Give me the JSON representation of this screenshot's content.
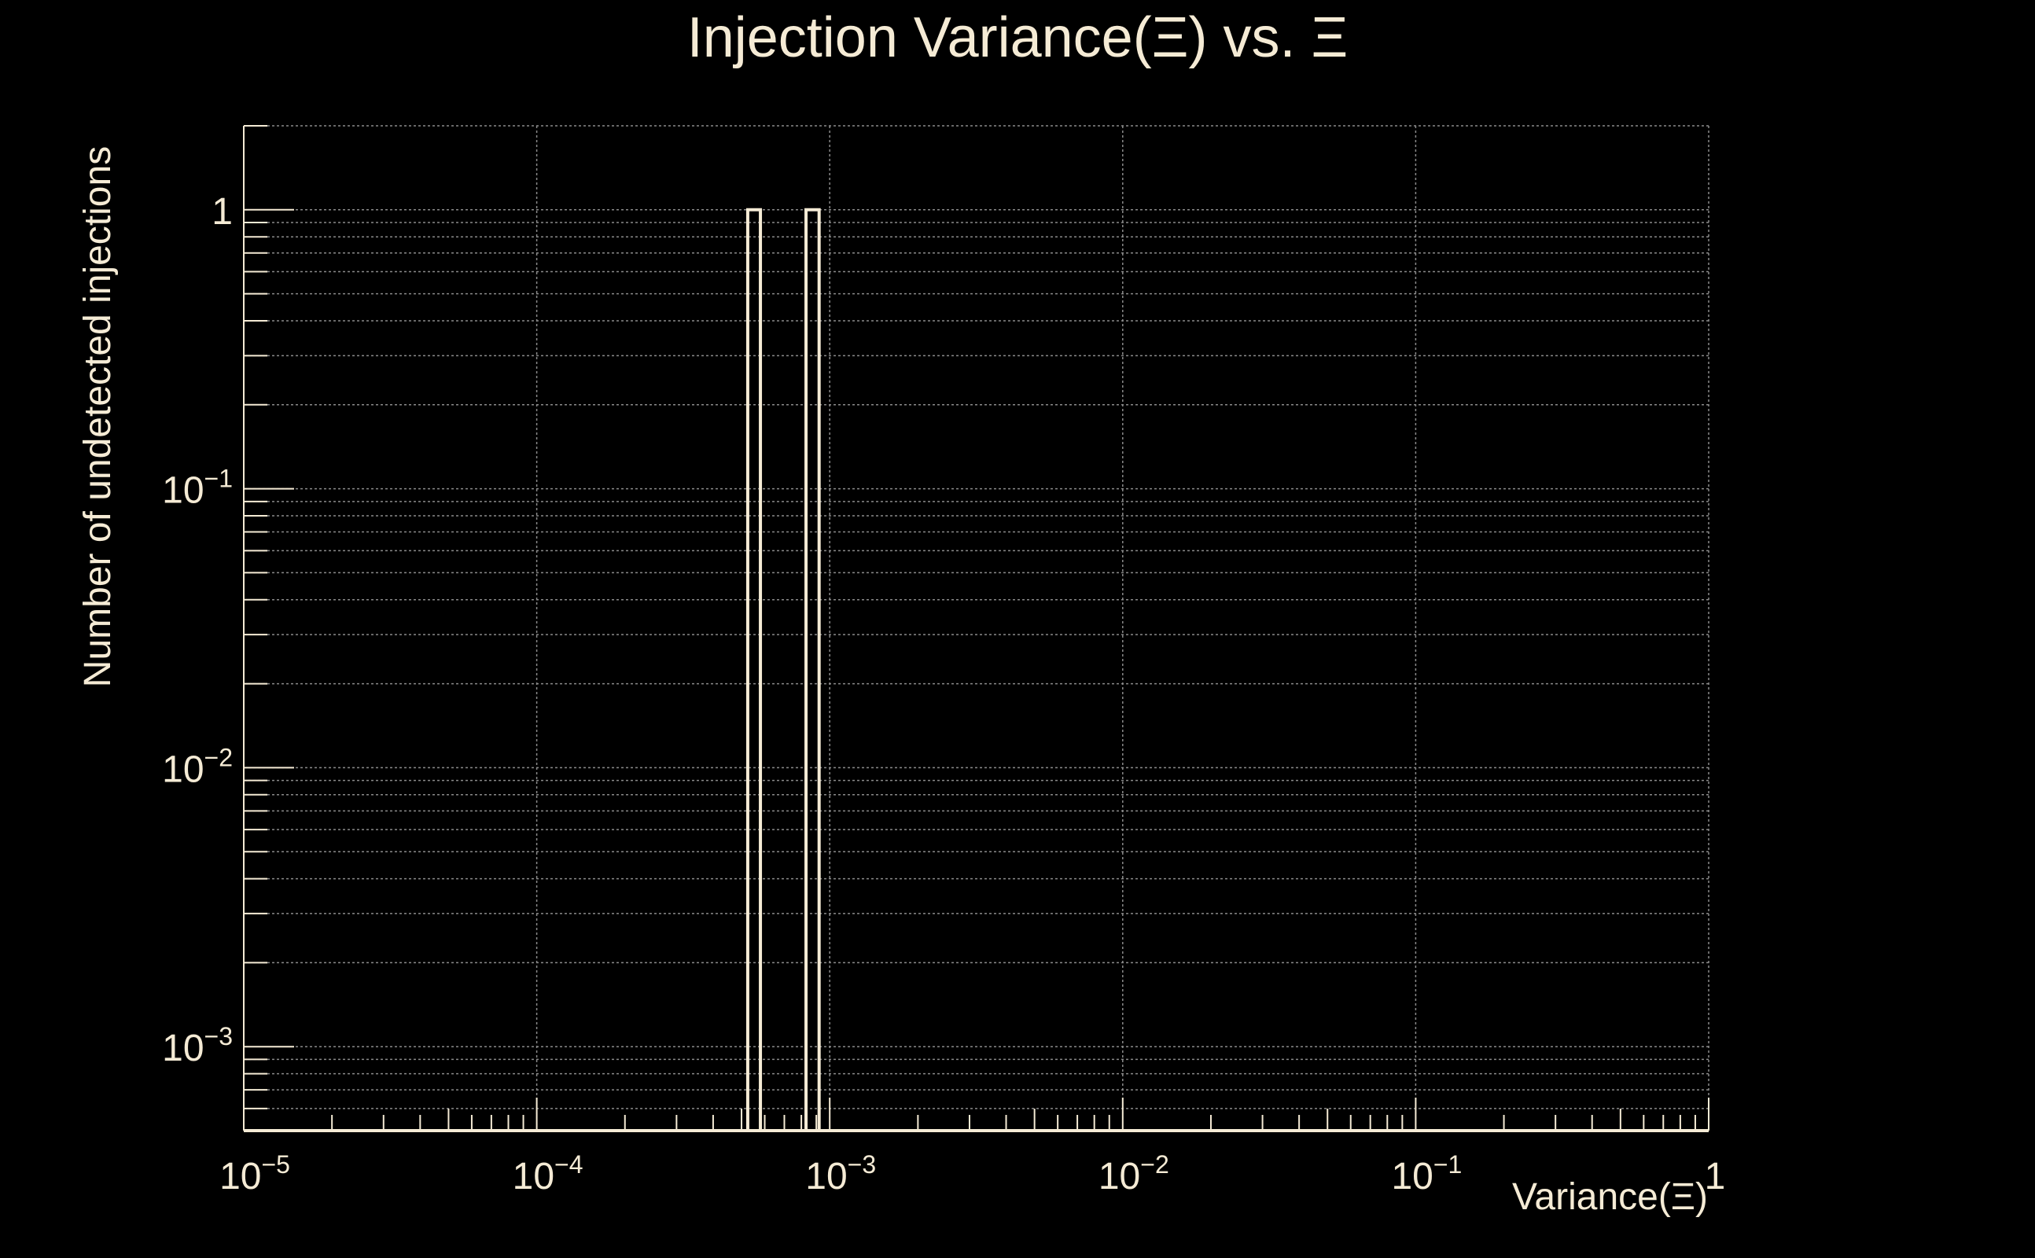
{
  "chart_data": {
    "type": "bar",
    "title": "Injection Variance(Ξ) vs. Ξ",
    "xlabel": "Variance(Ξ)",
    "ylabel": "Number of undetected injections",
    "x_scale": "log",
    "y_scale": "log",
    "xlim": [
      1e-05,
      1
    ],
    "ylim": [
      0.0005,
      2
    ],
    "grid": true,
    "x_ticks": [
      {
        "value": 1e-05,
        "base": "10",
        "exp": "−5"
      },
      {
        "value": 0.0001,
        "base": "10",
        "exp": "−4"
      },
      {
        "value": 0.001,
        "base": "10",
        "exp": "−3"
      },
      {
        "value": 0.01,
        "base": "10",
        "exp": "−2"
      },
      {
        "value": 0.1,
        "base": "10",
        "exp": "−1"
      },
      {
        "value": 1,
        "base": "1",
        "exp": ""
      }
    ],
    "y_ticks": [
      {
        "value": 0.001,
        "base": "10",
        "exp": "−3"
      },
      {
        "value": 0.01,
        "base": "10",
        "exp": "−2"
      },
      {
        "value": 0.1,
        "base": "10",
        "exp": "−1"
      },
      {
        "value": 1,
        "base": "1",
        "exp": ""
      }
    ],
    "bins": [
      {
        "x_low": 0.000525,
        "x_high": 0.00058,
        "value": 1
      },
      {
        "x_low": 0.00083,
        "x_high": 0.00092,
        "value": 1
      }
    ]
  },
  "colors": {
    "background": "#000000",
    "foreground": "#f5ebd5",
    "grid": "#8a8a8a"
  }
}
